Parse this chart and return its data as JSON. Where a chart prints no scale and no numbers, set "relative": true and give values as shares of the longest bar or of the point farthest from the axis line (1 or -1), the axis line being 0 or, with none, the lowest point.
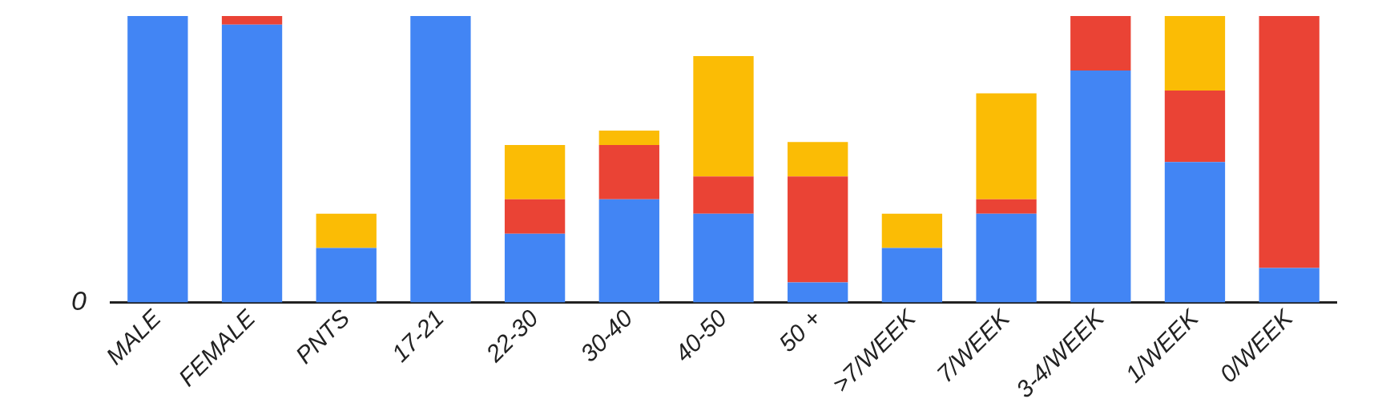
{
  "chart_data": {
    "type": "bar",
    "relative": true,
    "stacked": true,
    "grid": false,
    "legend": false,
    "categories": [
      "MALE",
      "FEMALE",
      "PNTS",
      "17-21",
      "22-30",
      "30-40",
      "40-50",
      "50 +",
      ">7/WEEK",
      "7/WEEK",
      "3-4/WEEK",
      "1/WEEK",
      "0/WEEK"
    ],
    "series": [
      {
        "color": "#4285f4",
        "values": [
          1,
          0.97,
          0.19,
          1,
          0.24,
          0.36,
          0.31,
          0.07,
          0.19,
          0.31,
          0.81,
          0.49,
          0.12
        ]
      },
      {
        "color": "#ea4335",
        "values": [
          0,
          0.03,
          0,
          0,
          0.12,
          0.19,
          0.13,
          0.37,
          0,
          0.05,
          0.19,
          0.25,
          0.88
        ]
      },
      {
        "color": "#fbbc05",
        "values": [
          0,
          0,
          0.12,
          0,
          0.19,
          0.05,
          0.42,
          0.12,
          0.12,
          0.37,
          0,
          0.26,
          0
        ]
      }
    ],
    "annotations": [
      "0"
    ]
  }
}
